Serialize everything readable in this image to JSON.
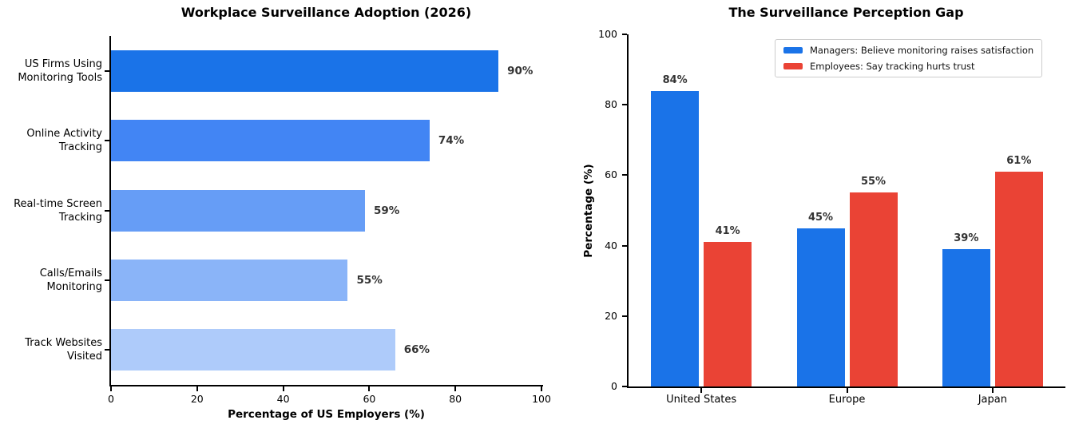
{
  "figure": {
    "background": "#ffffff",
    "axis_color": "#000000",
    "value_label_color": "#333333",
    "legend_border_color": "#cccccc"
  },
  "chart_data": [
    {
      "type": "bar",
      "orientation": "horizontal",
      "title": "Workplace Surveillance Adoption (2026)",
      "categories": [
        "US Firms Using\nMonitoring Tools",
        "Online Activity\nTracking",
        "Real-time Screen\nTracking",
        "Calls/Emails\nMonitoring",
        "Track Websites\nVisited"
      ],
      "values": [
        90,
        74,
        59,
        55,
        66
      ],
      "value_labels": [
        "90%",
        "74%",
        "59%",
        "55%",
        "66%"
      ],
      "bar_colors": [
        "#1a73e8",
        "#4285f4",
        "#669df6",
        "#8ab4f8",
        "#aecbfa"
      ],
      "xlabel": "Percentage of US Employers (%)",
      "xlim": [
        0,
        100
      ],
      "xticks": [
        0,
        20,
        40,
        60,
        80,
        100
      ],
      "grid": false
    },
    {
      "type": "bar",
      "orientation": "vertical",
      "grouped": true,
      "title": "The Surveillance Perception Gap",
      "categories": [
        "United States",
        "Europe",
        "Japan"
      ],
      "series": [
        {
          "name": "Managers: Believe monitoring raises satisfaction",
          "color": "#1a73e8",
          "values": [
            84,
            45,
            39
          ],
          "value_labels": [
            "84%",
            "45%",
            "39%"
          ]
        },
        {
          "name": "Employees: Say tracking hurts trust",
          "color": "#ea4335",
          "values": [
            41,
            55,
            61
          ],
          "value_labels": [
            "41%",
            "55%",
            "61%"
          ]
        }
      ],
      "ylabel": "Percentage (%)",
      "ylim": [
        0,
        100
      ],
      "yticks": [
        0,
        20,
        40,
        60,
        80,
        100
      ],
      "legend_position": "upper right",
      "grid": false
    }
  ]
}
